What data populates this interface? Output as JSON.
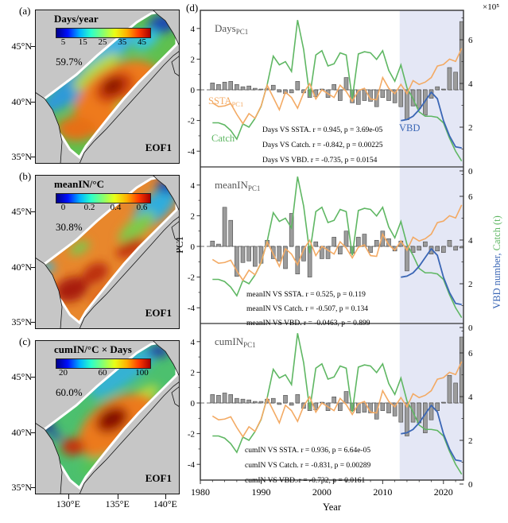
{
  "maps": [
    {
      "label": "(a)",
      "title": "Days/year",
      "variance": "59.7%",
      "eof": "EOF1",
      "colorbar_ticks": [
        "5",
        "15",
        "25",
        "35",
        "45"
      ],
      "lat_ticks": [
        "45°N",
        "40°N",
        "35°N"
      ]
    },
    {
      "label": "(b)",
      "title": "meanIN/°C",
      "variance": "30.8%",
      "eof": "EOF1",
      "colorbar_ticks": [
        "0",
        "0.2",
        "0.4",
        "0.6"
      ],
      "lat_ticks": [
        "45°N",
        "40°N",
        "35°N"
      ]
    },
    {
      "label": "(c)",
      "title": "cumIN/°C × Days",
      "variance": "60.0%",
      "eof": "EOF1",
      "colorbar_ticks": [
        "20",
        "60",
        "100"
      ],
      "lat_ticks": [
        "45°N",
        "40°N",
        "35°N"
      ],
      "lon_ticks": [
        "130°E",
        "135°E",
        "140°E"
      ]
    }
  ],
  "chart_data": {
    "type": "mixed",
    "timeseries": {
      "label": "(d)",
      "xlabel": "Year",
      "ylabel_left": "PC1",
      "right_scale_note": "×10⁵",
      "ylabel_right_parts": [
        {
          "text": "VBD number,",
          "color": "#3a66b5"
        },
        {
          "text": " Catch (t)",
          "color": "#5fb763"
        }
      ],
      "x_ticks": [
        1980,
        1990,
        2000,
        2010,
        2020
      ],
      "y_ticks_left": [
        -4,
        -2,
        0,
        2,
        4
      ],
      "y_ticks_right": [
        0,
        2,
        4,
        6
      ],
      "xlim": [
        1980,
        2023.5
      ],
      "ylim_left": [
        -5,
        5.2
      ],
      "ylim_right_1e5": [
        0,
        7.3
      ],
      "shaded_period": [
        2012.8,
        2023.5
      ],
      "years": [
        1982,
        1983,
        1984,
        1985,
        1986,
        1987,
        1988,
        1989,
        1990,
        1991,
        1992,
        1993,
        1994,
        1995,
        1996,
        1997,
        1998,
        1999,
        2000,
        2001,
        2002,
        2003,
        2004,
        2005,
        2006,
        2007,
        2008,
        2009,
        2010,
        2011,
        2012,
        2013,
        2014,
        2015,
        2016,
        2017,
        2018,
        2019,
        2020,
        2021,
        2022,
        2023
      ],
      "ssta_pc1": [
        -0.85,
        -1.1,
        -1.05,
        -0.9,
        -1.6,
        -2.2,
        -1.55,
        -1.85,
        -1.05,
        0.3,
        -0.5,
        -1.3,
        -0.15,
        -0.5,
        -1.2,
        -0.2,
        0.4,
        -0.6,
        0.0,
        -0.25,
        -0.5,
        0.3,
        -0.1,
        -0.75,
        -0.05,
        0.1,
        -0.6,
        -0.65,
        0.8,
        0.1,
        -0.25,
        0.35,
        -0.25,
        0.6,
        0.35,
        0.5,
        0.8,
        1.55,
        1.65,
        2.0,
        1.85,
        2.7
      ],
      "catch_1e5_t": [
        2.2,
        2.2,
        2.1,
        1.85,
        1.45,
        2.15,
        2.0,
        2.4,
        2.95,
        3.95,
        5.25,
        4.85,
        5.0,
        4.55,
        6.9,
        5.55,
        3.4,
        5.3,
        5.5,
        4.8,
        4.9,
        5.4,
        5.3,
        3.3,
        5.35,
        5.45,
        5.4,
        5.1,
        5.5,
        4.6,
        4.1,
        4.85,
        3.8,
        3.3,
        2.7,
        2.5,
        2.5,
        2.45,
        2.2,
        1.5,
        0.9,
        0.45
      ],
      "vbd_years": [
        2013,
        2014,
        2015,
        2016,
        2017,
        2018,
        2019,
        2020,
        2021,
        2022,
        2023
      ],
      "vbd_number_1e5": [
        2.3,
        2.35,
        2.5,
        2.8,
        3.2,
        3.6,
        3.3,
        2.3,
        1.6,
        1.1,
        1.05
      ],
      "labels": {
        "ssta_main": "SSTA",
        "ssta_sub": "PC1",
        "catch": "Catch",
        "vbd": "VBD"
      },
      "panels": [
        {
          "title_main": "Days",
          "title_sub": "PC1",
          "bars_pc1": [
            0.45,
            0.35,
            0.5,
            0.55,
            0.35,
            0.2,
            0.25,
            0.1,
            0.05,
            0.1,
            0.3,
            -0.15,
            -0.25,
            -0.2,
            0.55,
            -0.2,
            -0.5,
            -0.45,
            0.05,
            -0.5,
            0.35,
            -0.7,
            0.8,
            -0.85,
            -0.95,
            -0.7,
            -0.75,
            -1.1,
            -0.5,
            -0.7,
            -0.85,
            -1.1,
            -1.95,
            -1.05,
            -1.2,
            -1.65,
            -0.55,
            0.2,
            0.05,
            1.45,
            1.15,
            4.45
          ],
          "stats": [
            "Days VS SSTA. r =  0.945, p = 3.69e-05",
            "Days VS Catch. r = -0.842, p = 0.00225",
            "Days VS VBD. r = -0.735, p = 0.0154"
          ]
        },
        {
          "title_main": "meanIN",
          "title_sub": "PC1",
          "bars_pc1": [
            0.35,
            0.15,
            2.55,
            1.7,
            -1.95,
            -1.05,
            -0.95,
            -1.3,
            -1.1,
            0.4,
            -0.8,
            -0.95,
            -1.45,
            2.15,
            -1.8,
            -0.95,
            -2.0,
            0.3,
            -0.8,
            -0.8,
            0.6,
            -0.5,
            1.0,
            -0.45,
            0.6,
            0.8,
            -0.4,
            0.4,
            1.0,
            0.5,
            -0.3,
            0.35,
            -1.6,
            -0.4,
            -0.25,
            0.3,
            -0.5,
            -0.3,
            -0.4,
            0.4,
            -0.25,
            -0.1
          ],
          "stats": [
            "meanIN VS SSTA. r =  0.525, p = 0.119",
            "meanIN VS Catch. r = -0.507, p = 0.134",
            "meanIN VS VBD. r = -0.0463, p = 0.899"
          ]
        },
        {
          "title_main": "cumIN",
          "title_sub": "PC1",
          "bars_pc1": [
            0.55,
            0.5,
            0.65,
            0.55,
            0.3,
            0.25,
            0.2,
            0.1,
            0.1,
            0.25,
            0.3,
            -0.1,
            0.5,
            -0.15,
            0.55,
            -0.35,
            -0.5,
            -0.45,
            0.05,
            -0.5,
            0.4,
            -0.5,
            0.75,
            -0.5,
            -0.65,
            -0.6,
            -0.65,
            -1.05,
            -0.5,
            -0.65,
            -0.85,
            -1.25,
            -2.15,
            -1.25,
            -1.3,
            -1.95,
            -1.1,
            -0.5,
            0.05,
            1.8,
            1.3,
            4.3
          ],
          "stats": [
            "cumIN VS SSTA. r =  0.936, p = 6.64e-05",
            "cumIN VS Catch. r = -0.831, p = 0.00289",
            "cumIN VS VBD. r = -0.732, p = 0.0161"
          ]
        }
      ],
      "colors": {
        "bar": "#9c9c9c",
        "bar_edge": "#4a4a4a",
        "ssta": "#f3aa64",
        "catch": "#5fb763",
        "vbd": "#3a66b5",
        "shade": "#b7c0e4",
        "frame": "#333333",
        "zero": "#8a8a8a",
        "title": "#555555"
      }
    }
  }
}
